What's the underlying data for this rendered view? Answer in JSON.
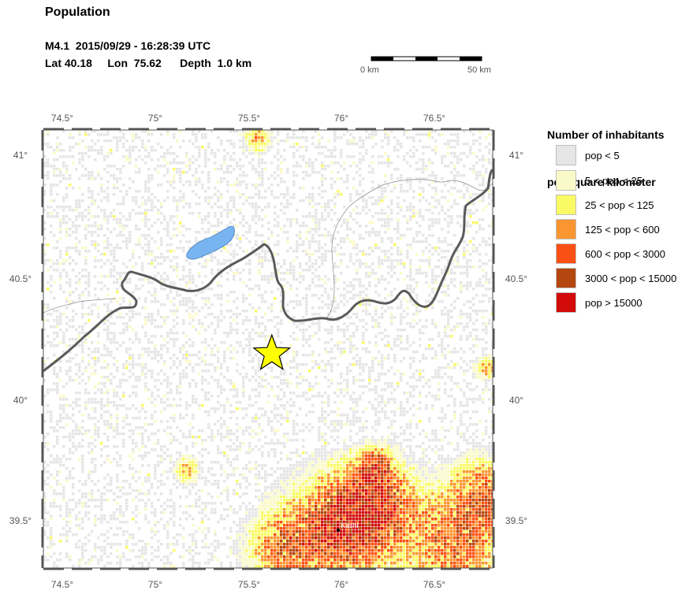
{
  "title": "Population",
  "event": {
    "line1": "M4.1  2015/09/29 - 16:28:39 UTC",
    "line2": "Lat 40.18     Lon  75.62      Depth  1.0 km"
  },
  "epicenter": {
    "lon": 75.62,
    "lat": 40.18
  },
  "scale_bar": {
    "start_label": "0 km",
    "end_label": "50 km"
  },
  "map_extent": {
    "lon": [
      74.4,
      76.8
    ],
    "lat": [
      39.3,
      41.1
    ]
  },
  "lon_ticks": [
    "74.5°",
    "75°",
    "75.5°",
    "76°",
    "76.5°"
  ],
  "lat_ticks": [
    "41°",
    "40.5°",
    "40°",
    "39.5°"
  ],
  "place_labels": [
    {
      "name": "Kashi"
    }
  ],
  "legend": {
    "title_line1": "Number of inhabitants",
    "title_line2": "per square kilometer",
    "items": [
      {
        "label": "pop < 5",
        "color": "#e6e6e6"
      },
      {
        "label": "5 < pop < 25",
        "color": "#fafac8"
      },
      {
        "label": "25 < pop < 125",
        "color": "#fafa64"
      },
      {
        "label": "125 < pop < 600",
        "color": "#fa9632"
      },
      {
        "label": "600 < pop < 3000",
        "color": "#fa5014"
      },
      {
        "label": "3000 < pop < 15000",
        "color": "#b4460f"
      },
      {
        "label": "pop > 15000",
        "color": "#d20a0a"
      }
    ]
  },
  "colors": {
    "border": "#5a5a5a",
    "lake": "#78b4f0",
    "star": "#ffff00",
    "frame_dash": "#555555"
  }
}
